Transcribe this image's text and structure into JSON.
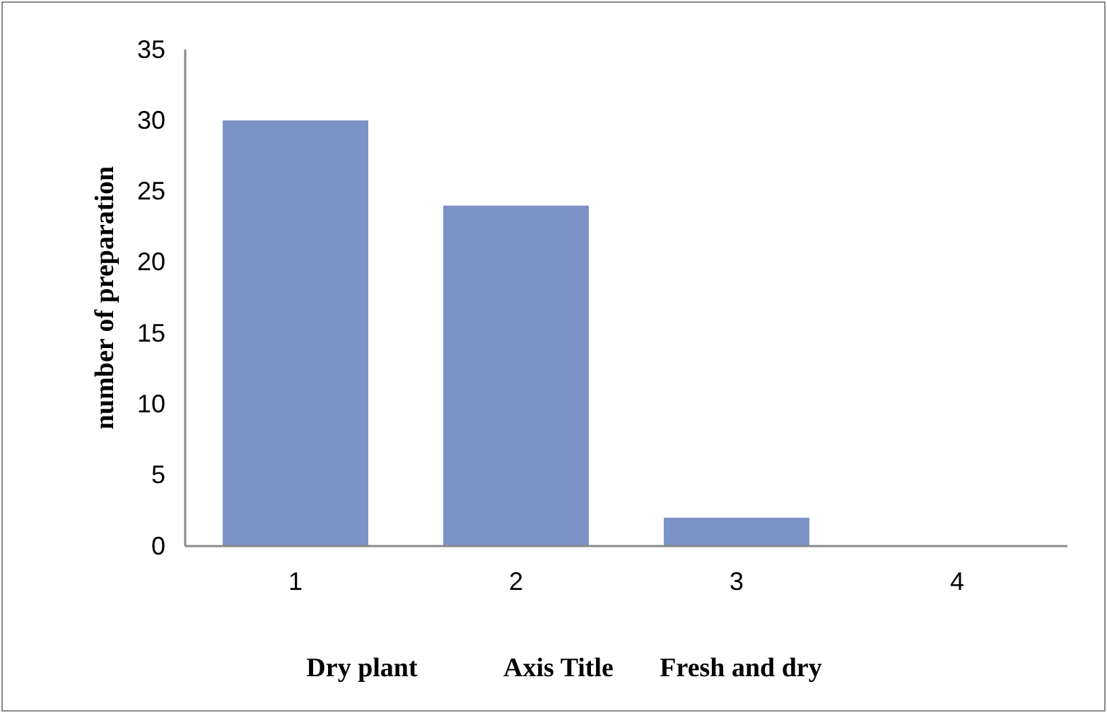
{
  "chart_data": {
    "type": "bar",
    "ylabel": "number of preparation",
    "xlabel": "Axis Title",
    "annotations": [
      "Dry plant",
      "Fresh and dry"
    ],
    "categories": [
      "1",
      "2",
      "3",
      "4"
    ],
    "values": [
      30,
      24,
      2,
      0
    ],
    "color": "#7b93c6",
    "ylim": [
      0,
      35
    ],
    "yticks": [
      0,
      5,
      10,
      15,
      20,
      25,
      30,
      35
    ],
    "grid": false
  }
}
